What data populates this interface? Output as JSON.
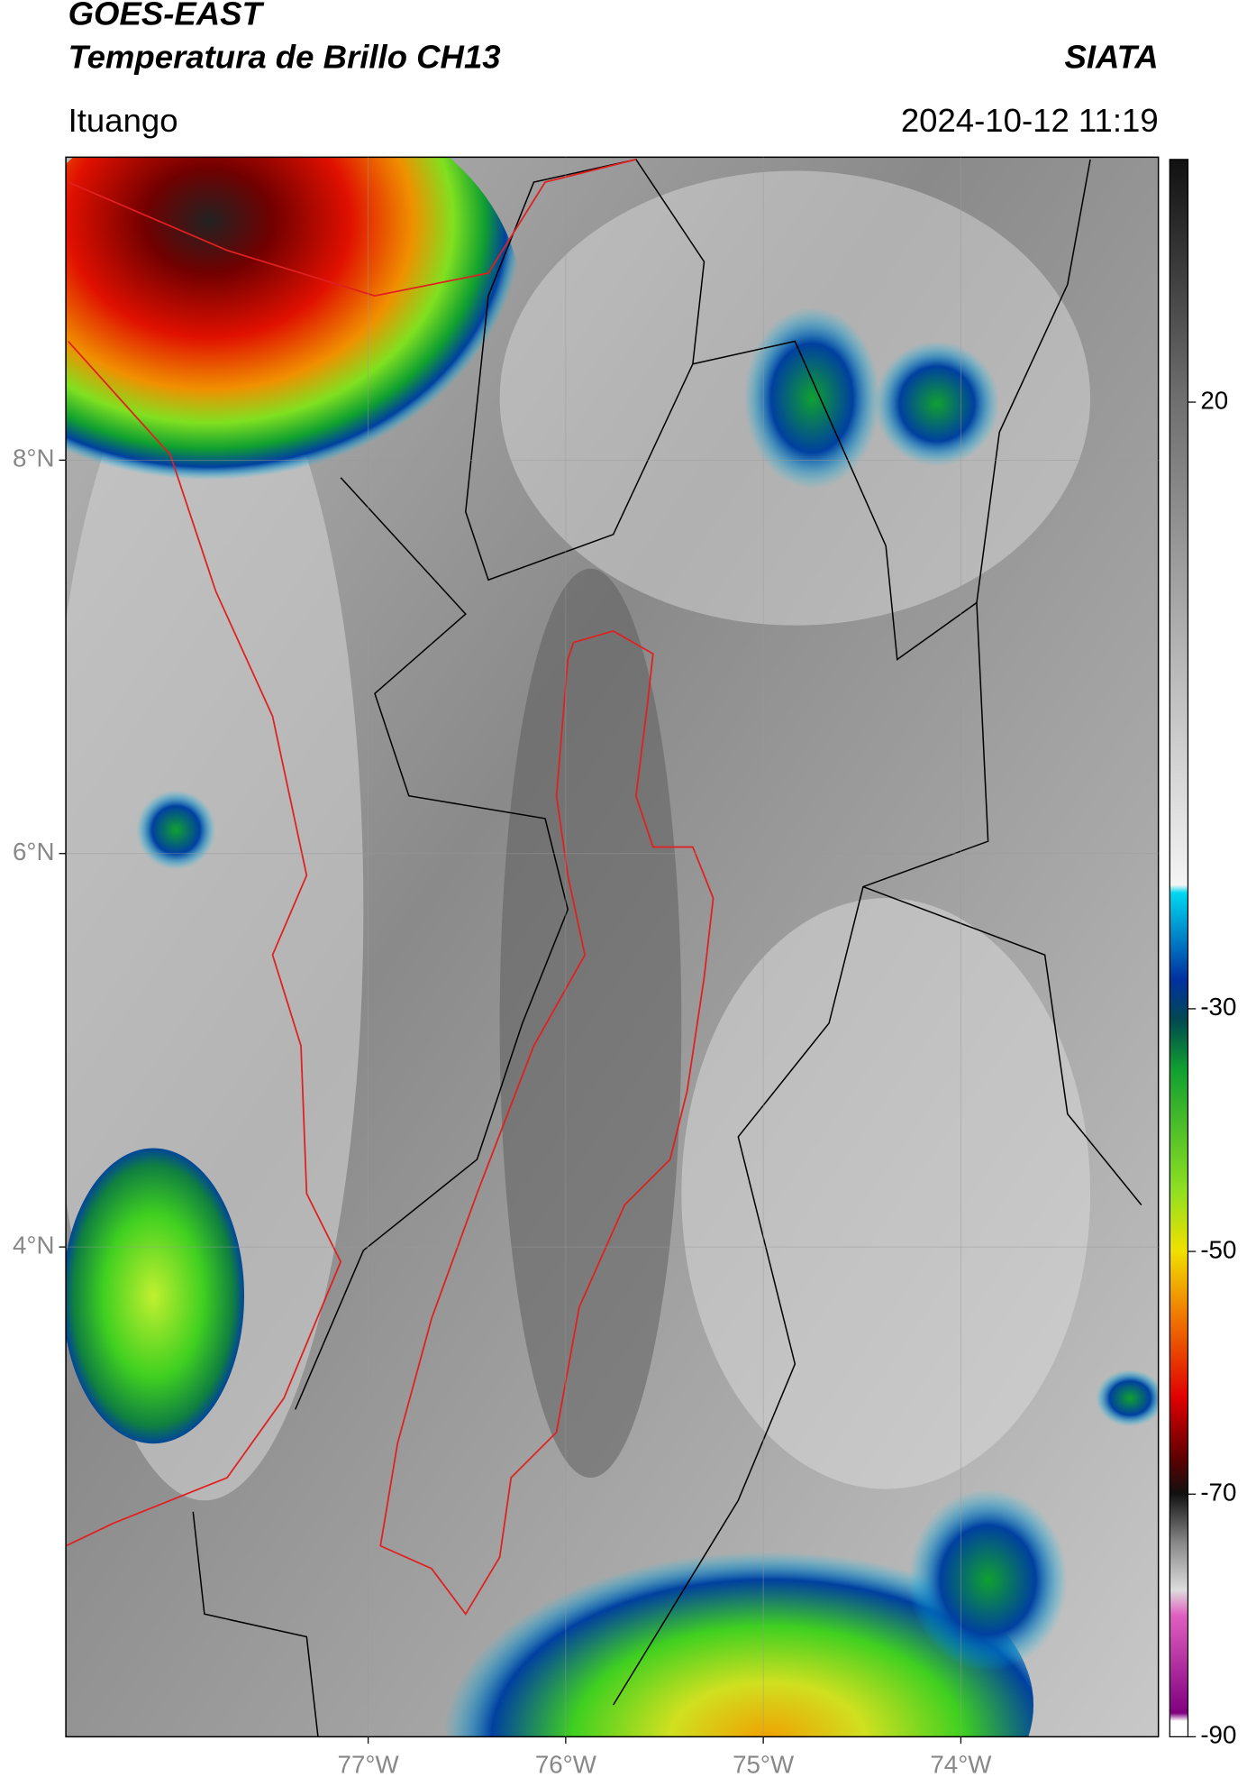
{
  "header": {
    "title_1": "GOES-EAST",
    "title_2": "Temperatura de Brillo CH13",
    "agency": "SIATA",
    "location": "Ituango",
    "datetime": "2024-10-12 11:19"
  },
  "map": {
    "xlim": [
      -78.53,
      -73.0
    ],
    "ylim": [
      1.51,
      9.54
    ],
    "xticks": [
      {
        "value": -77,
        "label": "77°W"
      },
      {
        "value": -76,
        "label": "76°W"
      },
      {
        "value": -75,
        "label": "75°W"
      },
      {
        "value": -74,
        "label": "74°W"
      }
    ],
    "yticks": [
      {
        "value": 8,
        "label": "8°N"
      },
      {
        "value": 6,
        "label": "6°N"
      },
      {
        "value": 4,
        "label": "4°N"
      }
    ]
  },
  "colorbar": {
    "range": [
      -90,
      40
    ],
    "ticks": [
      20,
      -30,
      -50,
      -70,
      -90
    ]
  }
}
